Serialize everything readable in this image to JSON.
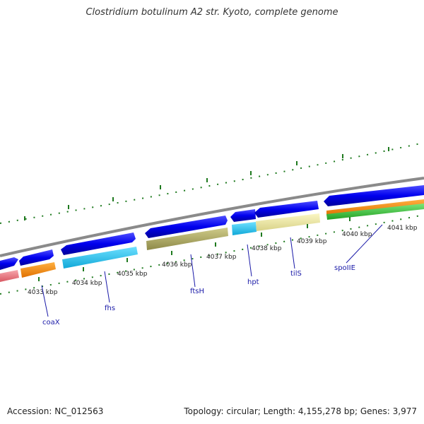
{
  "title": "Clostridium botulinum A2 str. Kyoto, complete genome",
  "footer": {
    "accession": "Accession: NC_012563",
    "summary": "Topology: circular; Length: 4,155,278 bp; Genes: 3,977"
  },
  "scale_labels": [
    "4033 kbp",
    "4034 kbp",
    "4035 kbp",
    "4036 kbp",
    "4037 kbp",
    "4038 kbp",
    "4039 kbp",
    "4040 kbp",
    "4041 kbp"
  ],
  "gene_labels": [
    "coaX",
    "fhs",
    "ftsH",
    "hpt",
    "tilS",
    "spoIIE"
  ],
  "colors": {
    "strand": "#0000ee",
    "orange": "#ff8c00",
    "cyan": "#19c8f0",
    "olive": "#b4b06a",
    "pale_yellow": "#f2eda4",
    "green": "#3ec83e",
    "pink": "#ee7a84",
    "backbone": "#8a8a8a",
    "ticks": "#1f7a1f",
    "leader": "#1a1aa8"
  }
}
